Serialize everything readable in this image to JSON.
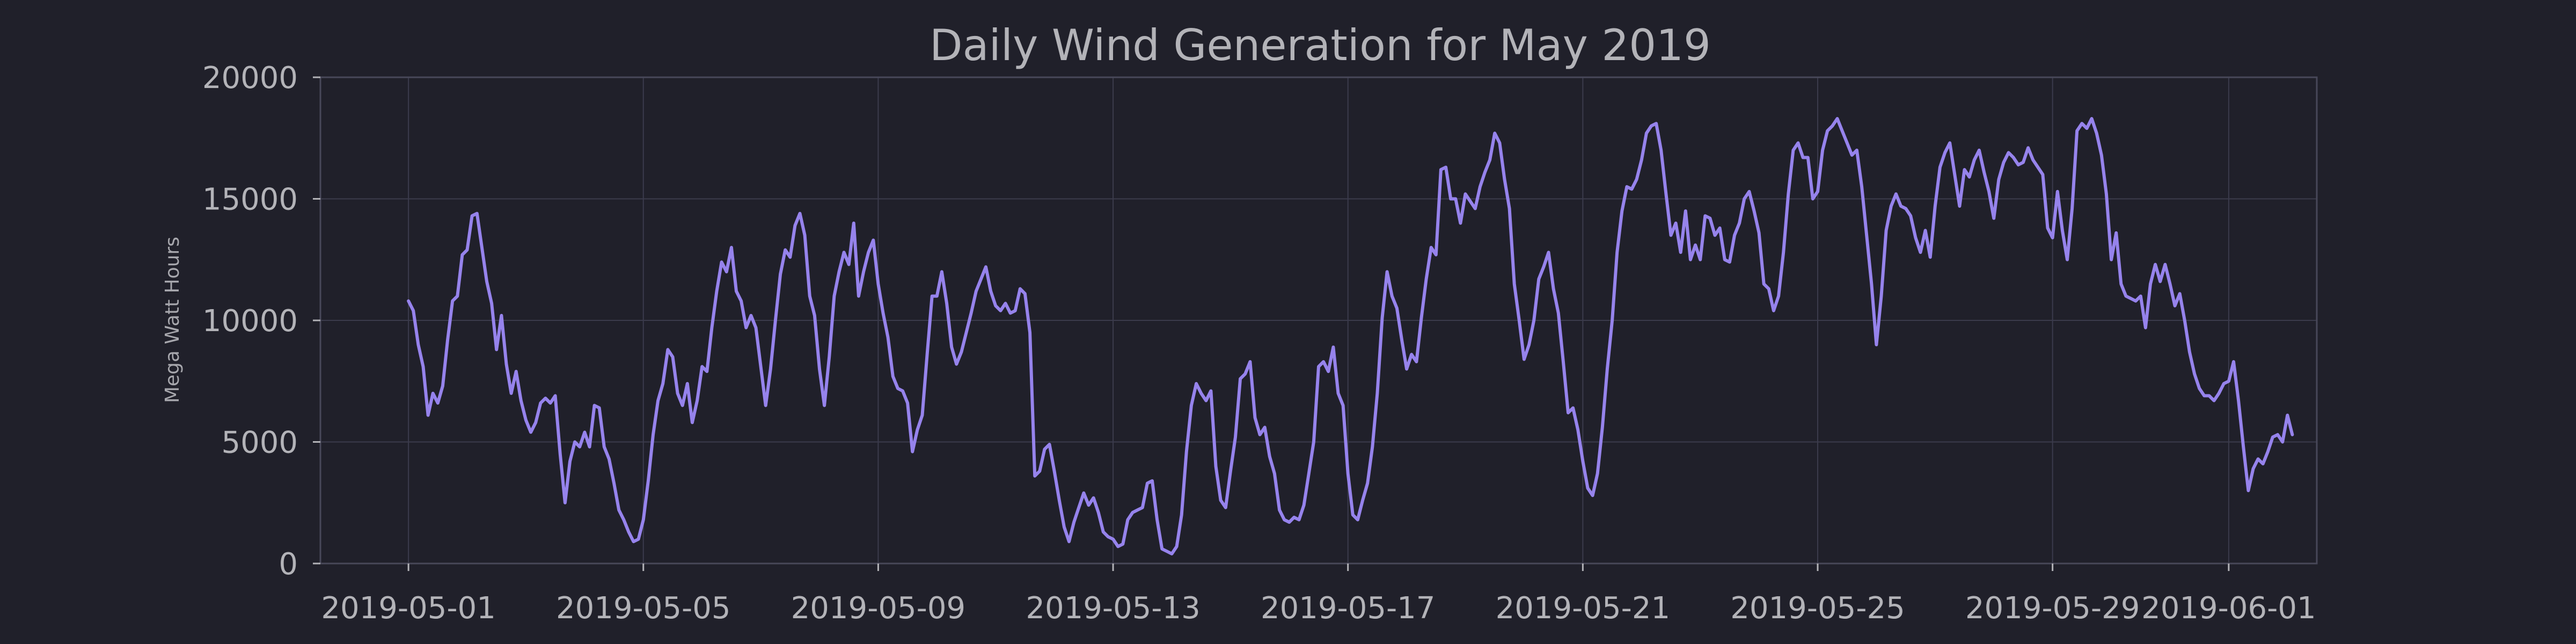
{
  "chart_data": {
    "type": "line",
    "title": "Daily Wind Generation for May 2019",
    "xlabel": "",
    "ylabel": "Mega Watt Hours",
    "x_range": [
      "2019-04-29T12:00",
      "2019-06-02T12:00"
    ],
    "ylim": [
      0,
      20000
    ],
    "x_ticks": [
      "2019-05-01",
      "2019-05-05",
      "2019-05-09",
      "2019-05-13",
      "2019-05-17",
      "2019-05-21",
      "2019-05-25",
      "2019-05-29",
      "2019-06-01"
    ],
    "y_ticks": [
      0,
      5000,
      10000,
      15000,
      20000
    ],
    "grid": true,
    "line_color": "#9683ec",
    "series": [
      {
        "x_start": "2019-05-01T00:00",
        "step_hours": 2,
        "values": [
          10800,
          10400,
          9000,
          8100,
          6100,
          7000,
          6600,
          7300,
          9200,
          10800,
          11000,
          12700,
          12900,
          14300,
          14400,
          13000,
          11600,
          10700,
          8800,
          10200,
          8200,
          7000,
          7900,
          6700,
          5900,
          5400,
          5800,
          6600,
          6800,
          6600,
          6900,
          4500,
          2500,
          4200,
          5000,
          4800,
          5400,
          4800,
          6500,
          6400,
          4800,
          4300,
          3300,
          2200,
          1800,
          1300,
          900,
          1000,
          1800,
          3400,
          5300,
          6700,
          7400,
          8800,
          8500,
          7000,
          6500,
          7400,
          5800,
          6700,
          8100,
          7900,
          9700,
          11200,
          12400,
          12000,
          13000,
          11200,
          10800,
          9700,
          10200,
          9700,
          8100,
          6500,
          8000,
          10000,
          11900,
          12900,
          12600,
          13900,
          14400,
          13500,
          11000,
          10200,
          8000,
          6500,
          8500,
          11000,
          12000,
          12800,
          12300,
          14000,
          11000,
          12000,
          12800,
          13300,
          11500,
          10300,
          9300,
          7700,
          7200,
          7100,
          6600,
          4600,
          5500,
          6100,
          8600,
          11000,
          11000,
          12000,
          10700,
          8900,
          8200,
          8700,
          9500,
          10300,
          11200,
          11700,
          12200,
          11200,
          10600,
          10400,
          10700,
          10300,
          10400,
          11300,
          11100,
          9500,
          3600,
          3800,
          4700,
          4900,
          3800,
          2600,
          1500,
          900,
          1700,
          2300,
          2900,
          2400,
          2700,
          2100,
          1300,
          1100,
          1000,
          700,
          800,
          1800,
          2100,
          2200,
          2300,
          3300,
          3400,
          1800,
          600,
          500,
          400,
          700,
          2000,
          4600,
          6500,
          7400,
          7000,
          6700,
          7100,
          4000,
          2600,
          2300,
          3800,
          5200,
          7600,
          7800,
          8300,
          6000,
          5300,
          5600,
          4400,
          3700,
          2200,
          1800,
          1700,
          1900,
          1800,
          2400,
          3700,
          5000,
          8100,
          8300,
          7900,
          8900,
          7000,
          6500,
          3700,
          2000,
          1800,
          2600,
          3300,
          4800,
          7000,
          10100,
          12000,
          11000,
          10500,
          9200,
          8000,
          8600,
          8300,
          10100,
          11700,
          13000,
          12700,
          16200,
          16300,
          15000,
          15000,
          14000,
          15200,
          14900,
          14600,
          15500,
          16100,
          16600,
          17700,
          17300,
          15800,
          14600,
          11500,
          10000,
          8400,
          9000,
          10000,
          11700,
          12200,
          12800,
          11300,
          10300,
          8300,
          6200,
          6400,
          5500,
          4200,
          3100,
          2800,
          3700,
          5600,
          8000,
          10000,
          12800,
          14500,
          15500,
          15400,
          15800,
          16600,
          17700,
          18000,
          18100,
          17000,
          15200,
          13500,
          14000,
          12800,
          14500,
          12500,
          13100,
          12500,
          14300,
          14200,
          13500,
          13800,
          12500,
          12400,
          13500,
          14000,
          15000,
          15300,
          14500,
          13600,
          11500,
          11300,
          10400,
          11000,
          12800,
          15200,
          17000,
          17300,
          16700,
          16700,
          15000,
          15300,
          17000,
          17800,
          18000,
          18300,
          17800,
          17300,
          16800,
          17000,
          15500,
          13500,
          11500,
          9000,
          11000,
          13700,
          14700,
          15200,
          14700,
          14600,
          14300,
          13400,
          12800,
          13700,
          12600,
          14700,
          16300,
          16900,
          17300,
          16000,
          14700,
          16200,
          15900,
          16600,
          17000,
          16100,
          15300,
          14200,
          15800,
          16500,
          16900,
          16700,
          16400,
          16500,
          17100,
          16600,
          16300,
          16000,
          13800,
          13400,
          15300,
          13700,
          12500,
          14600,
          17800,
          18100,
          17900,
          18300,
          17700,
          16800,
          15200,
          12500,
          13600,
          11500,
          11000,
          10900,
          10800,
          11000,
          9700,
          11500,
          12300,
          11600,
          12300,
          11500,
          10600,
          11100,
          10000,
          8700,
          7800,
          7200,
          6900,
          6900,
          6700,
          7000,
          7400,
          7500,
          8300,
          6700,
          4800,
          3000,
          3900,
          4300,
          4100,
          4600,
          5200,
          5300,
          5000,
          6100,
          5300
        ]
      }
    ]
  }
}
